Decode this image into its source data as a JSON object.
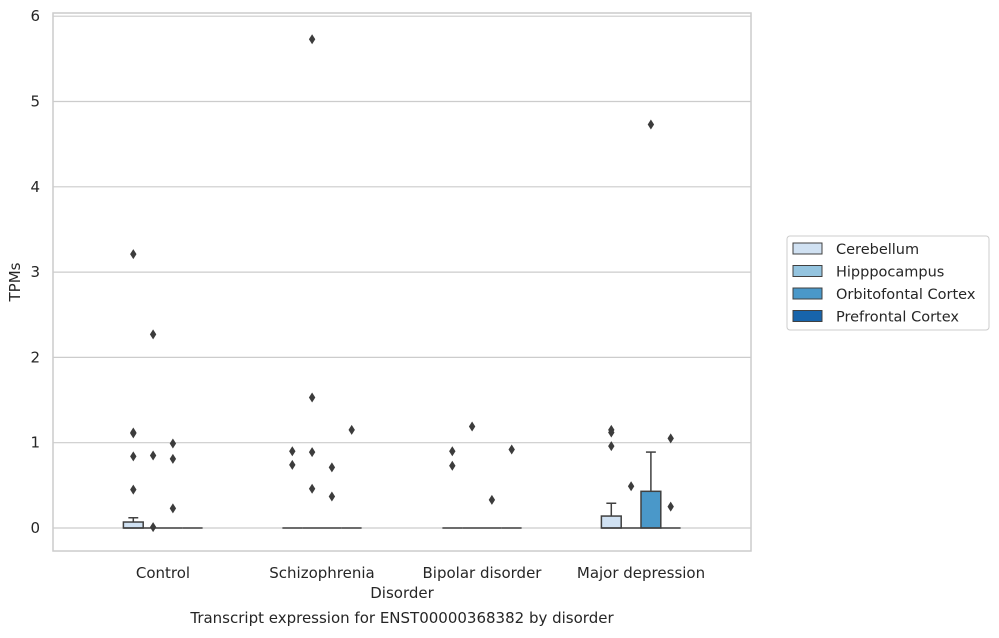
{
  "chart_data": {
    "type": "box",
    "xlabel": "Disorder",
    "ylabel": "TPMs",
    "caption": "Transcript expression for ENST00000368382 by disorder",
    "categories": [
      "Control",
      "Schizophrenia",
      "Bipolar disorder",
      "Major depression"
    ],
    "ylim": [
      -0.28,
      6.02
    ],
    "yticks": [
      "0",
      "1",
      "2",
      "3",
      "4",
      "5",
      "6"
    ],
    "grid": true,
    "legend_position": "right",
    "series": [
      {
        "name": "Cerebellum",
        "color": "#d0e1f2",
        "boxes": [
          {
            "q1": 0.0,
            "median": 0.0,
            "q3": 0.07,
            "whisker_low": 0.0,
            "whisker_high": 0.12,
            "outliers": [
              0.45,
              0.84,
              1.11,
              1.12,
              3.21
            ]
          },
          {
            "q1": 0.0,
            "median": 0.0,
            "q3": 0.0,
            "whisker_low": 0.0,
            "whisker_high": 0.0,
            "outliers": [
              0.74,
              0.9
            ]
          },
          {
            "q1": 0.0,
            "median": 0.0,
            "q3": 0.0,
            "whisker_low": 0.0,
            "whisker_high": 0.0,
            "outliers": [
              0.73,
              0.9
            ]
          },
          {
            "q1": 0.0,
            "median": 0.0,
            "q3": 0.14,
            "whisker_low": 0.0,
            "whisker_high": 0.29,
            "outliers": [
              0.96,
              1.12,
              1.15
            ]
          }
        ]
      },
      {
        "name": "Hipppocampus",
        "color": "#94c4df",
        "boxes": [
          {
            "q1": 0.0,
            "median": 0.0,
            "q3": 0.0,
            "whisker_low": 0.0,
            "whisker_high": 0.0,
            "outliers": [
              0.01,
              0.85,
              2.27
            ]
          },
          {
            "q1": 0.0,
            "median": 0.0,
            "q3": 0.0,
            "whisker_low": 0.0,
            "whisker_high": 0.0,
            "outliers": [
              0.46,
              0.89,
              1.53,
              5.73
            ]
          },
          {
            "q1": 0.0,
            "median": 0.0,
            "q3": 0.0,
            "whisker_low": 0.0,
            "whisker_high": 0.0,
            "outliers": [
              1.19
            ]
          },
          {
            "q1": 0.0,
            "median": 0.0,
            "q3": 0.0,
            "whisker_low": 0.0,
            "whisker_high": 0.0,
            "outliers": [
              0.49
            ]
          }
        ]
      },
      {
        "name": "Orbitofontal Cortex",
        "color": "#4a98c9",
        "boxes": [
          {
            "q1": 0.0,
            "median": 0.0,
            "q3": 0.0,
            "whisker_low": 0.0,
            "whisker_high": 0.0,
            "outliers": [
              0.23,
              0.81,
              0.99
            ]
          },
          {
            "q1": 0.0,
            "median": 0.0,
            "q3": 0.0,
            "whisker_low": 0.0,
            "whisker_high": 0.0,
            "outliers": [
              0.37,
              0.71
            ]
          },
          {
            "q1": 0.0,
            "median": 0.0,
            "q3": 0.0,
            "whisker_low": 0.0,
            "whisker_high": 0.0,
            "outliers": [
              0.33
            ]
          },
          {
            "q1": 0.0,
            "median": 0.0,
            "q3": 0.43,
            "whisker_low": 0.0,
            "whisker_high": 0.89,
            "outliers": [
              4.73
            ]
          }
        ]
      },
      {
        "name": "Prefrontal Cortex",
        "color": "#1764ab",
        "boxes": [
          {
            "q1": 0.0,
            "median": 0.0,
            "q3": 0.0,
            "whisker_low": 0.0,
            "whisker_high": 0.0,
            "outliers": []
          },
          {
            "q1": 0.0,
            "median": 0.0,
            "q3": 0.0,
            "whisker_low": 0.0,
            "whisker_high": 0.0,
            "outliers": [
              1.15
            ]
          },
          {
            "q1": 0.0,
            "median": 0.0,
            "q3": 0.0,
            "whisker_low": 0.0,
            "whisker_high": 0.0,
            "outliers": [
              0.92
            ]
          },
          {
            "q1": 0.0,
            "median": 0.0,
            "q3": 0.0,
            "whisker_low": 0.0,
            "whisker_high": 0.0,
            "outliers": [
              0.25,
              1.05
            ]
          }
        ]
      }
    ]
  }
}
